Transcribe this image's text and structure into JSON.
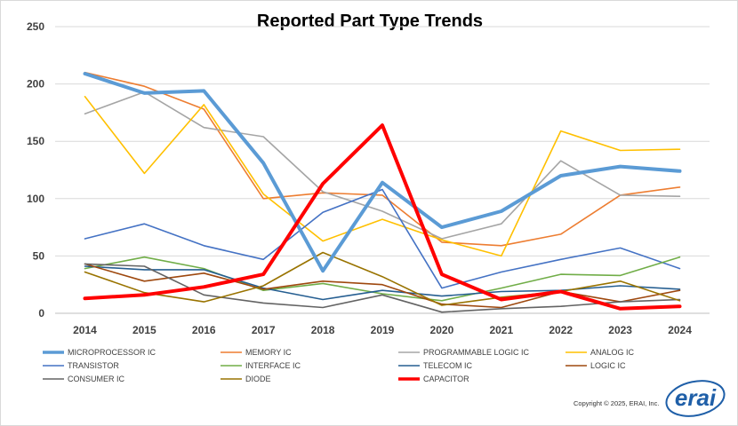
{
  "chart_data": {
    "type": "line",
    "title": "Reported Part Type Trends",
    "xlabel": "",
    "ylabel": "",
    "x": [
      "2014",
      "2015",
      "2016",
      "2017",
      "2018",
      "2019",
      "2020",
      "2021",
      "2022",
      "2023",
      "2024"
    ],
    "ylim": [
      0,
      250
    ],
    "yticks": [
      0,
      50,
      100,
      150,
      200,
      250
    ],
    "grid": true,
    "legend_position": "bottom",
    "series": [
      {
        "name": "MICROPROCESSOR IC",
        "color": "#5b9bd5",
        "emphasis": "thick",
        "values": [
          209,
          192,
          194,
          131,
          37,
          114,
          75,
          89,
          120,
          128,
          124
        ]
      },
      {
        "name": "MEMORY IC",
        "color": "#ed7d31",
        "values": [
          210,
          198,
          178,
          100,
          105,
          103,
          62,
          59,
          69,
          103,
          110
        ]
      },
      {
        "name": "PROGRAMMABLE LOGIC IC",
        "color": "#a5a5a5",
        "values": [
          174,
          193,
          162,
          154,
          106,
          89,
          65,
          78,
          133,
          103,
          102
        ]
      },
      {
        "name": "ANALOG IC",
        "color": "#ffc000",
        "values": [
          189,
          122,
          182,
          104,
          63,
          82,
          64,
          50,
          159,
          142,
          143
        ]
      },
      {
        "name": "TRANSISTOR",
        "color": "#4472c4",
        "values": [
          65,
          78,
          59,
          47,
          88,
          108,
          22,
          36,
          47,
          57,
          39
        ]
      },
      {
        "name": "INTERFACE IC",
        "color": "#70ad47",
        "values": [
          39,
          49,
          39,
          20,
          26,
          17,
          11,
          22,
          34,
          33,
          49
        ]
      },
      {
        "name": "TELECOM IC",
        "color": "#255e91",
        "values": [
          41,
          38,
          38,
          22,
          12,
          20,
          15,
          19,
          20,
          24,
          21
        ]
      },
      {
        "name": "LOGIC IC",
        "color": "#9e480e",
        "values": [
          43,
          28,
          35,
          21,
          28,
          25,
          8,
          5,
          19,
          10,
          20
        ]
      },
      {
        "name": "CONSUMER IC",
        "color": "#636363",
        "values": [
          43,
          41,
          16,
          9,
          5,
          16,
          1,
          4,
          6,
          10,
          12
        ]
      },
      {
        "name": "DIODE",
        "color": "#997300",
        "values": [
          36,
          18,
          10,
          24,
          53,
          32,
          7,
          14,
          19,
          28,
          11
        ]
      },
      {
        "name": "CAPACITOR",
        "color": "#ff0000",
        "emphasis": "thick",
        "values": [
          13,
          16,
          23,
          34,
          113,
          164,
          34,
          12,
          19,
          4,
          6
        ]
      }
    ]
  },
  "footer": {
    "copyright": "Copyright © 2025, ERAI, Inc.",
    "logo": "erai"
  }
}
